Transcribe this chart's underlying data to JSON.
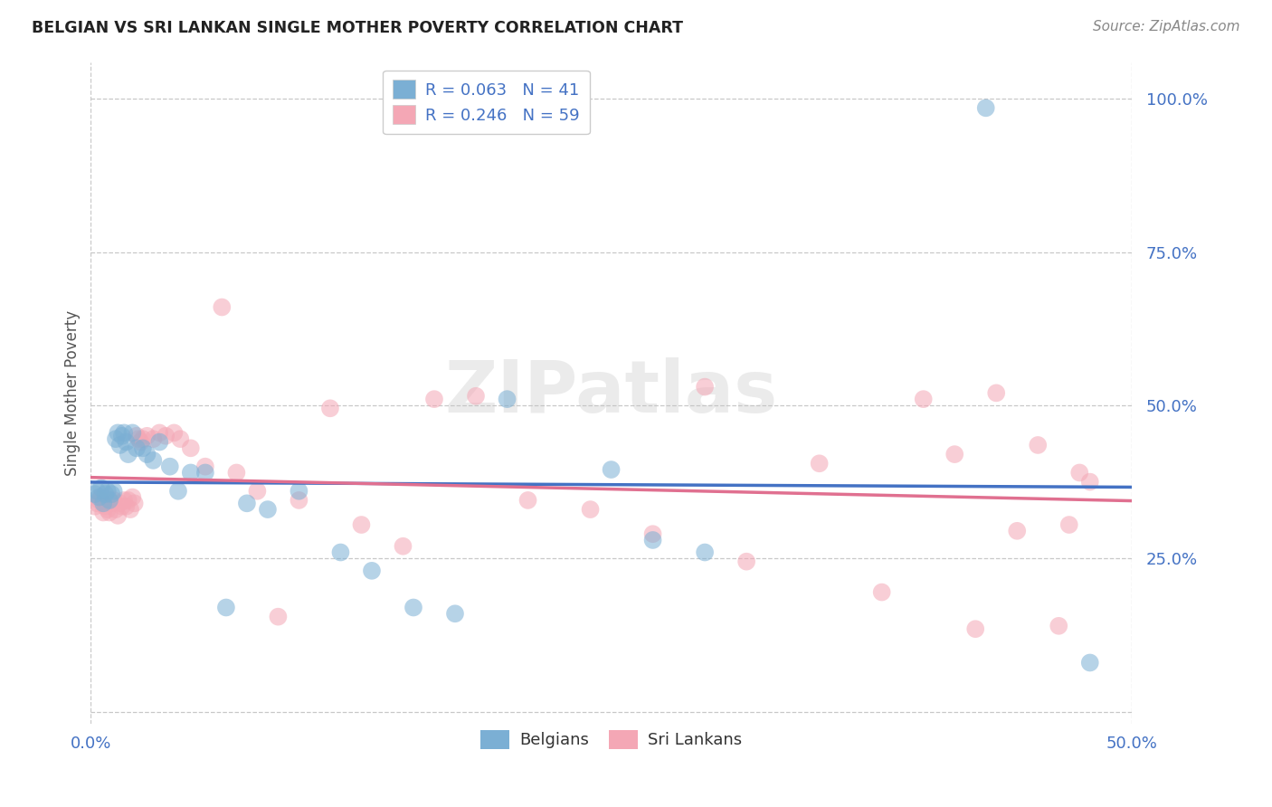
{
  "title": "BELGIAN VS SRI LANKAN SINGLE MOTHER POVERTY CORRELATION CHART",
  "source": "Source: ZipAtlas.com",
  "ylabel": "Single Mother Poverty",
  "xlim": [
    0.0,
    0.5
  ],
  "ylim": [
    -0.02,
    1.06
  ],
  "belgian_color": "#7bafd4",
  "srilankan_color": "#f4a7b5",
  "trend_blue": "#4472c4",
  "trend_pink": "#e07090",
  "belgian_R": 0.063,
  "belgian_N": 41,
  "srilankan_R": 0.246,
  "srilankan_N": 59,
  "watermark": "ZIPatlas",
  "background_color": "#ffffff",
  "grid_color": "#c8c8c8",
  "belgian_x": [
    0.002,
    0.003,
    0.004,
    0.005,
    0.006,
    0.007,
    0.008,
    0.009,
    0.01,
    0.011,
    0.012,
    0.013,
    0.014,
    0.015,
    0.016,
    0.017,
    0.018,
    0.02,
    0.022,
    0.025,
    0.027,
    0.03,
    0.033,
    0.038,
    0.042,
    0.048,
    0.055,
    0.065,
    0.075,
    0.085,
    0.1,
    0.12,
    0.135,
    0.155,
    0.175,
    0.2,
    0.25,
    0.27,
    0.295,
    0.43,
    0.48
  ],
  "belgian_y": [
    0.355,
    0.36,
    0.35,
    0.365,
    0.34,
    0.355,
    0.36,
    0.345,
    0.355,
    0.36,
    0.445,
    0.455,
    0.435,
    0.45,
    0.455,
    0.44,
    0.42,
    0.455,
    0.43,
    0.43,
    0.42,
    0.41,
    0.44,
    0.4,
    0.36,
    0.39,
    0.39,
    0.17,
    0.34,
    0.33,
    0.36,
    0.26,
    0.23,
    0.17,
    0.16,
    0.51,
    0.395,
    0.28,
    0.26,
    0.985,
    0.08
  ],
  "srilankan_x": [
    0.002,
    0.003,
    0.004,
    0.005,
    0.006,
    0.007,
    0.008,
    0.009,
    0.01,
    0.011,
    0.012,
    0.013,
    0.014,
    0.015,
    0.016,
    0.017,
    0.018,
    0.019,
    0.02,
    0.021,
    0.022,
    0.023,
    0.024,
    0.025,
    0.027,
    0.03,
    0.033,
    0.036,
    0.04,
    0.043,
    0.048,
    0.055,
    0.063,
    0.07,
    0.08,
    0.09,
    0.1,
    0.115,
    0.13,
    0.15,
    0.165,
    0.185,
    0.21,
    0.24,
    0.27,
    0.295,
    0.315,
    0.35,
    0.38,
    0.4,
    0.415,
    0.425,
    0.435,
    0.445,
    0.455,
    0.465,
    0.47,
    0.475,
    0.48
  ],
  "srilankan_y": [
    0.335,
    0.34,
    0.345,
    0.35,
    0.325,
    0.335,
    0.33,
    0.325,
    0.34,
    0.345,
    0.33,
    0.32,
    0.34,
    0.335,
    0.345,
    0.335,
    0.345,
    0.33,
    0.35,
    0.34,
    0.45,
    0.445,
    0.44,
    0.445,
    0.45,
    0.445,
    0.455,
    0.45,
    0.455,
    0.445,
    0.43,
    0.4,
    0.66,
    0.39,
    0.36,
    0.155,
    0.345,
    0.495,
    0.305,
    0.27,
    0.51,
    0.515,
    0.345,
    0.33,
    0.29,
    0.53,
    0.245,
    0.405,
    0.195,
    0.51,
    0.42,
    0.135,
    0.52,
    0.295,
    0.435,
    0.14,
    0.305,
    0.39,
    0.375
  ]
}
